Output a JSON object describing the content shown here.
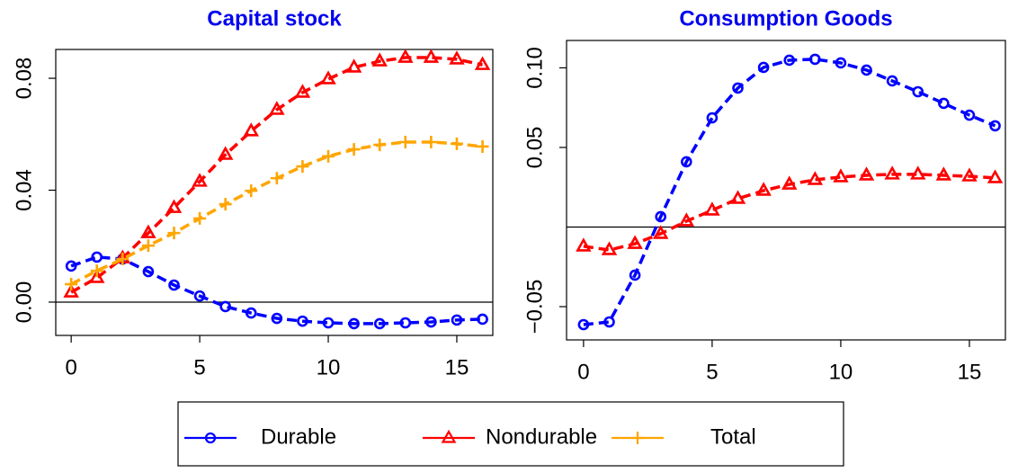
{
  "chart_data": [
    {
      "type": "line",
      "title": "Capital stock",
      "title_color": "#0000ee",
      "x": [
        0,
        1,
        2,
        3,
        4,
        5,
        6,
        7,
        8,
        9,
        10,
        11,
        12,
        13,
        14,
        15,
        16
      ],
      "series": [
        {
          "name": "Durable",
          "color": "#0000ff",
          "marker": "circle",
          "values": [
            0.0129,
            0.0161,
            0.0154,
            0.0109,
            0.0061,
            0.0022,
            -0.0016,
            -0.0039,
            -0.0058,
            -0.0068,
            -0.0074,
            -0.0077,
            -0.0077,
            -0.0074,
            -0.0071,
            -0.0064,
            -0.0061
          ]
        },
        {
          "name": "Nondurable",
          "color": "#ff0000",
          "marker": "triangle",
          "values": [
            0.0035,
            0.0087,
            0.0157,
            0.0247,
            0.0337,
            0.0431,
            0.0527,
            0.0611,
            0.0688,
            0.0749,
            0.0797,
            0.0839,
            0.0861,
            0.0874,
            0.0874,
            0.0868,
            0.0848
          ]
        },
        {
          "name": "Total",
          "color": "#ffa500",
          "marker": "plus",
          "values": [
            0.0064,
            0.0112,
            0.0154,
            0.0202,
            0.0247,
            0.0299,
            0.035,
            0.0398,
            0.0443,
            0.0485,
            0.0521,
            0.0546,
            0.0562,
            0.0572,
            0.0572,
            0.0566,
            0.0556
          ]
        }
      ],
      "xlim": [
        -0.6,
        16.4
      ],
      "xticks": [
        0,
        5,
        10,
        15
      ],
      "ylim": [
        -0.0119,
        0.0903
      ],
      "yticks": [
        {
          "value": 0,
          "label": "0.00"
        },
        0.04,
        0.08
      ],
      "reference_line": 0
    },
    {
      "type": "line",
      "title": "Consumption Goods",
      "title_color": "#0000ee",
      "x": [
        0,
        1,
        2,
        3,
        4,
        5,
        6,
        7,
        8,
        9,
        10,
        11,
        12,
        13,
        14,
        15,
        16
      ],
      "series": [
        {
          "name": "Durable",
          "color": "#0000ff",
          "marker": "circle",
          "values": [
            -0.0613,
            -0.0596,
            -0.0302,
            0.0065,
            0.041,
            0.0686,
            0.0873,
            0.1003,
            0.1048,
            0.1054,
            0.1031,
            0.0986,
            0.0918,
            0.085,
            0.0777,
            0.0703,
            0.0636
          ]
        },
        {
          "name": "Nondurable",
          "color": "#ff0000",
          "marker": "triangle",
          "values": [
            -0.0121,
            -0.0144,
            -0.0105,
            -0.0042,
            0.0037,
            0.0105,
            0.0178,
            0.0229,
            0.0268,
            0.0297,
            0.0314,
            0.0325,
            0.0331,
            0.0331,
            0.0325,
            0.0319,
            0.0308
          ]
        }
      ],
      "xlim": [
        -0.66,
        16.4
      ],
      "xticks": [
        0,
        5,
        10,
        15
      ],
      "ylim": [
        -0.0709,
        0.1172
      ],
      "yticks": [
        {
          "value": -0.05,
          "label": "−0.05"
        },
        0.05,
        {
          "value": 0.1,
          "label": "0.10"
        }
      ],
      "reference_line": 0
    }
  ]
}
